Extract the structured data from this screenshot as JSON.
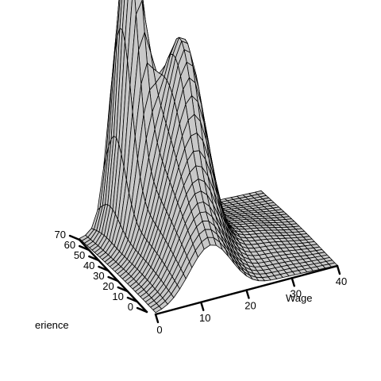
{
  "chart_data": {
    "type": "surface3d",
    "title": "",
    "xlabel": "Wage",
    "ylabel": "Experience",
    "ylabel_visible": "erience",
    "x_ticks": [
      0,
      10,
      20,
      30,
      40
    ],
    "y_ticks": [
      0,
      10,
      20,
      30,
      40,
      50,
      60,
      70
    ],
    "x_range": [
      0,
      40
    ],
    "y_range": [
      0,
      70
    ],
    "grid_resolution": 30,
    "surface_color": "#c8c8c8",
    "mesh_color": "#000000",
    "surface_peaks": [
      {
        "wage": 8.5,
        "experience": 60,
        "relative_height": 1.0
      },
      {
        "wage": 16,
        "experience": 40,
        "relative_height": 0.55
      }
    ]
  }
}
